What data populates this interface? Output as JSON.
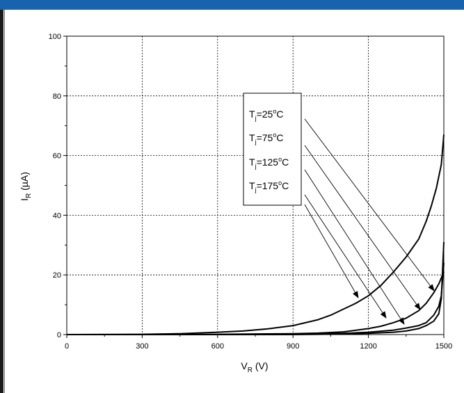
{
  "colors": {
    "title_bar": "#1763b0",
    "curve": "#000000",
    "grid": "#000000"
  },
  "chart_data": {
    "type": "line",
    "xlabel": "V",
    "xlabel_sub": "R",
    "xlabel_unit": " (V)",
    "ylabel": "I",
    "ylabel_sub": "R",
    "ylabel_unit": " (µA)",
    "xlim": [
      0,
      1500
    ],
    "ylim": [
      0,
      100
    ],
    "xticks": [
      "0",
      "300",
      "600",
      "900",
      "1200",
      "1500"
    ],
    "yticks": [
      "0",
      "20",
      "40",
      "60",
      "80",
      "100"
    ],
    "grid": true,
    "legend_placement": "right",
    "legend": [
      {
        "prefix": "T",
        "sub": "j",
        "mid": "=25",
        "sup": "o",
        "suffix": "C"
      },
      {
        "prefix": "T",
        "sub": "j",
        "mid": "=75",
        "sup": "o",
        "suffix": "C"
      },
      {
        "prefix": "T",
        "sub": "j",
        "mid": "=125",
        "sup": "o",
        "suffix": "C"
      },
      {
        "prefix": "T",
        "sub": "j",
        "mid": "=175",
        "sup": "o",
        "suffix": "C"
      }
    ],
    "series": [
      {
        "x": [
          0,
          300,
          600,
          900,
          1000,
          1100,
          1200,
          1300,
          1350,
          1400,
          1430,
          1460,
          1480,
          1490,
          1500
        ],
        "y": [
          0,
          0,
          0,
          0,
          0.1,
          0.2,
          0.4,
          0.8,
          1.2,
          2,
          3,
          4.5,
          7,
          12,
          31
        ]
      },
      {
        "x": [
          0,
          300,
          600,
          900,
          1000,
          1100,
          1200,
          1300,
          1350,
          1400,
          1430,
          1460,
          1480,
          1490,
          1500
        ],
        "y": [
          0,
          0,
          0,
          0.1,
          0.2,
          0.4,
          0.8,
          1.5,
          2.2,
          3,
          4,
          6.5,
          9.5,
          13,
          24
        ]
      },
      {
        "x": [
          0,
          300,
          600,
          900,
          1000,
          1100,
          1200,
          1250,
          1300,
          1350,
          1400,
          1430,
          1460,
          1480,
          1500
        ],
        "y": [
          0,
          0,
          0.1,
          0.3,
          0.5,
          0.9,
          2,
          2.8,
          4,
          5.5,
          8,
          10.5,
          14,
          17,
          21
        ]
      },
      {
        "x": [
          0,
          300,
          450,
          600,
          700,
          800,
          900,
          1000,
          1050,
          1100,
          1150,
          1200,
          1250,
          1300,
          1350,
          1400,
          1430,
          1450,
          1470,
          1490,
          1500
        ],
        "y": [
          0,
          0.1,
          0.3,
          0.8,
          1.2,
          1.9,
          3,
          5,
          6.5,
          8.5,
          10.5,
          13,
          16.5,
          21,
          26,
          32,
          38,
          43,
          49,
          57,
          67
        ]
      }
    ]
  }
}
